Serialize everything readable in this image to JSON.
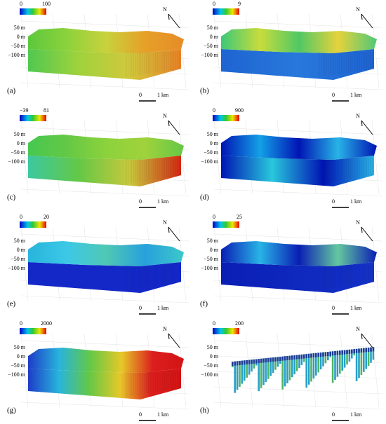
{
  "north": "N",
  "depth_labels": [
    "50 m",
    "0 m",
    "−50 m",
    "−100 m"
  ],
  "scale_bar": {
    "start": "0",
    "end": "1 km"
  },
  "panels": [
    {
      "label": "(a)",
      "colorbar": {
        "min": "0",
        "max": "100"
      }
    },
    {
      "label": "(b)",
      "colorbar": {
        "min": "0",
        "max": "9"
      }
    },
    {
      "label": "(c)",
      "colorbar": {
        "min": "−39",
        "max": "81"
      }
    },
    {
      "label": "(d)",
      "colorbar": {
        "min": "0",
        "max": "900"
      }
    },
    {
      "label": "(e)",
      "colorbar": {
        "min": "0",
        "max": "20"
      }
    },
    {
      "label": "(f)",
      "colorbar": {
        "min": "0",
        "max": "25"
      }
    },
    {
      "label": "(g)",
      "colorbar": {
        "min": "0",
        "max": "2000"
      }
    },
    {
      "label": "(h)",
      "colorbar": {
        "min": "0",
        "max": "200"
      }
    }
  ]
}
